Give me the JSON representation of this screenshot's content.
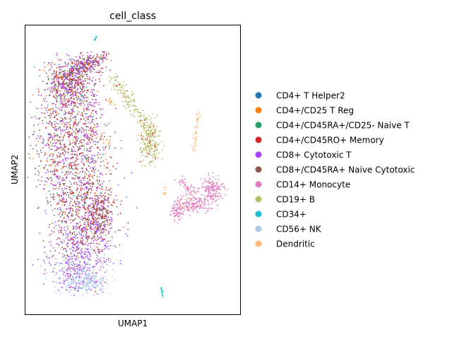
{
  "chart_data": {
    "type": "scatter",
    "title": "cell_class",
    "xlabel": "UMAP1",
    "ylabel": "UMAP2",
    "xlim": [
      0,
      10
    ],
    "ylim": [
      0,
      10
    ],
    "ticks": "none",
    "grid": false,
    "legend_position": "right",
    "series": [
      {
        "name": "CD4+ T Helper2",
        "color": "#1f77b4"
      },
      {
        "name": "CD4+/CD25 T Reg",
        "color": "#ff7f0e"
      },
      {
        "name": "CD4+/CD45RA+/CD25- Naive T",
        "color": "#279e68"
      },
      {
        "name": "CD4+/CD45RO+ Memory",
        "color": "#d62728"
      },
      {
        "name": "CD8+ Cytotoxic T",
        "color": "#aa40fc"
      },
      {
        "name": "CD8+/CD45RA+ Naive Cytotoxic",
        "color": "#8c564b"
      },
      {
        "name": "CD14+ Monocyte",
        "color": "#e377c2"
      },
      {
        "name": "CD19+ B",
        "color": "#b5bd61"
      },
      {
        "name": "CD34+",
        "color": "#17becf"
      },
      {
        "name": "CD56+ NK",
        "color": "#aec7e8"
      },
      {
        "name": "Dendritic",
        "color": "#ffbb78"
      }
    ]
  }
}
